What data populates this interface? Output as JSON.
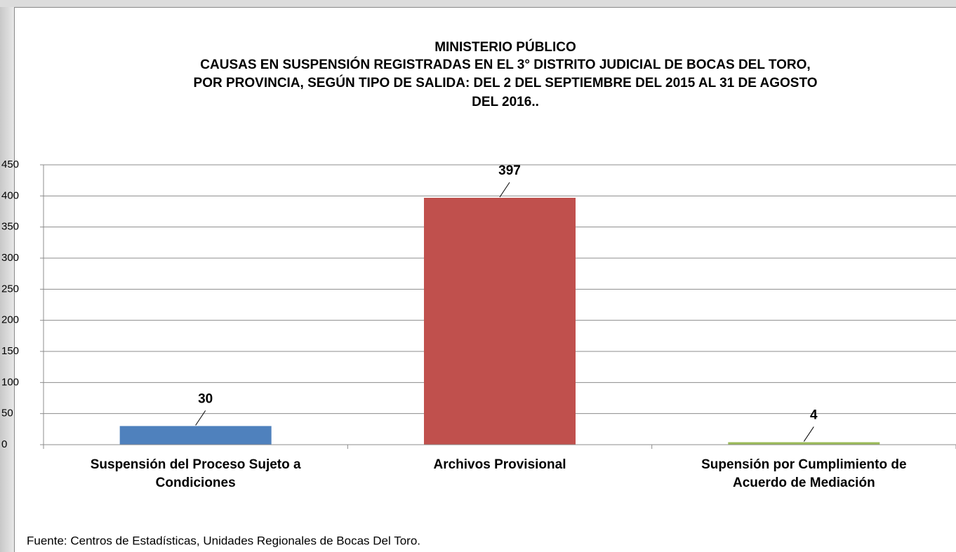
{
  "chart_data": {
    "type": "bar",
    "title": [
      "MINISTERIO PÚBLICO",
      "CAUSAS EN SUSPENSIÓN REGISTRADAS EN EL 3° DISTRITO JUDICIAL DE BOCAS DEL TORO,",
      "POR PROVINCIA, SEGÚN TIPO DE SALIDA: DEL 2 DEL SEPTIEMBRE DEL 2015 AL 31 DE AGOSTO",
      "DEL 2016.."
    ],
    "categories": [
      [
        "Suspensión del Proceso Sujeto a",
        "Condiciones"
      ],
      [
        "Archivos Provisional"
      ],
      [
        "Supensión por Cumplimiento de",
        "Acuerdo de Mediación"
      ]
    ],
    "values": [
      30,
      397,
      4
    ],
    "colors": [
      "#4f81bd",
      "#c0504d",
      "#9bbb59"
    ],
    "ylim": [
      0,
      450
    ],
    "yticks": [
      0,
      50,
      100,
      150,
      200,
      250,
      300,
      350,
      400,
      450
    ],
    "grid": true,
    "source": "Fuente: Centros de Estadísticas, Unidades Regionales de Bocas Del Toro."
  }
}
